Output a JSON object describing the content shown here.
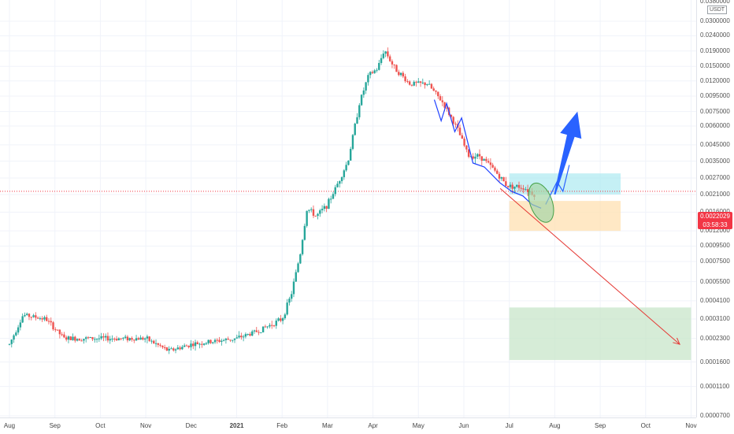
{
  "chart_data": {
    "type": "candlestick",
    "symbol_unit": "USDT",
    "price_scale": "log",
    "price_ticks": [
      "0.0300000",
      "0.0240000",
      "0.0190000",
      "0.0150000",
      "0.0120000",
      "0.0095000",
      "0.0075000",
      "0.0060000",
      "0.0045000",
      "0.0035000",
      "0.0027000",
      "0.0021000",
      "0.0016000",
      "0.0012000",
      "0.0009500",
      "0.0007500",
      "0.0005500",
      "0.0004100",
      "0.0003100",
      "0.0002300",
      "0.0001600",
      "0.0001100",
      "0.0000700"
    ],
    "top_partial_tick": "0.0380000",
    "time_ticks": [
      {
        "label": "Aug",
        "bold": false
      },
      {
        "label": "Sep",
        "bold": false
      },
      {
        "label": "Oct",
        "bold": false
      },
      {
        "label": "Nov",
        "bold": false
      },
      {
        "label": "Dec",
        "bold": false
      },
      {
        "label": "2021",
        "bold": true
      },
      {
        "label": "Feb",
        "bold": false
      },
      {
        "label": "Mar",
        "bold": false
      },
      {
        "label": "Apr",
        "bold": false
      },
      {
        "label": "May",
        "bold": false
      },
      {
        "label": "Jun",
        "bold": false
      },
      {
        "label": "Jul",
        "bold": false
      },
      {
        "label": "Aug",
        "bold": false
      },
      {
        "label": "Sep",
        "bold": false
      },
      {
        "label": "Oct",
        "bold": false
      },
      {
        "label": "Nov",
        "bold": false
      }
    ],
    "current_price": "0.0022029",
    "countdown": "03:58:33",
    "colors": {
      "up": "#26a69a",
      "down": "#ef5350",
      "current": "#f23645"
    },
    "price_path": [
      {
        "m": 0.0,
        "p": 0.00021
      },
      {
        "m": 0.3,
        "p": 0.00033
      },
      {
        "m": 0.8,
        "p": 0.00031
      },
      {
        "m": 1.2,
        "p": 0.00023
      },
      {
        "m": 2.0,
        "p": 0.00023
      },
      {
        "m": 3.0,
        "p": 0.00023
      },
      {
        "m": 3.5,
        "p": 0.00019
      },
      {
        "m": 4.0,
        "p": 0.00021
      },
      {
        "m": 5.0,
        "p": 0.00023
      },
      {
        "m": 5.5,
        "p": 0.00026
      },
      {
        "m": 6.0,
        "p": 0.00031
      },
      {
        "m": 6.2,
        "p": 0.00045
      },
      {
        "m": 6.4,
        "p": 0.00085
      },
      {
        "m": 6.55,
        "p": 0.0017
      },
      {
        "m": 6.75,
        "p": 0.0015
      },
      {
        "m": 7.0,
        "p": 0.0018
      },
      {
        "m": 7.2,
        "p": 0.0024
      },
      {
        "m": 7.45,
        "p": 0.0035
      },
      {
        "m": 7.7,
        "p": 0.0085
      },
      {
        "m": 7.9,
        "p": 0.013
      },
      {
        "m": 8.1,
        "p": 0.0145
      },
      {
        "m": 8.25,
        "p": 0.0195
      },
      {
        "m": 8.45,
        "p": 0.015
      },
      {
        "m": 8.8,
        "p": 0.0115
      },
      {
        "m": 9.2,
        "p": 0.0115
      },
      {
        "m": 9.55,
        "p": 0.0085
      },
      {
        "m": 9.85,
        "p": 0.0058
      },
      {
        "m": 10.1,
        "p": 0.0038
      },
      {
        "m": 10.35,
        "p": 0.0038
      },
      {
        "m": 10.65,
        "p": 0.0031
      },
      {
        "m": 10.95,
        "p": 0.0024
      },
      {
        "m": 11.3,
        "p": 0.00235
      },
      {
        "m": 11.55,
        "p": 0.0021
      }
    ],
    "zones": [
      {
        "name": "resistance-zone",
        "from_m": 11.0,
        "to_m": 13.45,
        "top": 0.0029,
        "bottom": 0.0021,
        "color": "#b2ebf2"
      },
      {
        "name": "support-zone",
        "from_m": 11.0,
        "to_m": 13.45,
        "top": 0.0019,
        "bottom": 0.0012,
        "color": "#ffe0b2"
      },
      {
        "name": "target-zone",
        "from_m": 11.0,
        "to_m": 15.0,
        "top": 0.00037,
        "bottom": 0.000165,
        "color": "#c8e6c9"
      }
    ],
    "bullish_projection": [
      {
        "m": 11.8,
        "p": 0.0018
      },
      {
        "m": 12.05,
        "p": 0.00255
      },
      {
        "m": 12.18,
        "p": 0.0022
      },
      {
        "m": 12.32,
        "p": 0.0033
      }
    ],
    "bullish_arrow": {
      "from": {
        "m": 12.0,
        "p": 0.0021
      },
      "to": {
        "m": 12.5,
        "p": 0.0075
      }
    },
    "bearish_arrow": {
      "from": {
        "m": 10.8,
        "p": 0.0023
      },
      "to": {
        "m": 14.75,
        "p": 0.00021
      }
    },
    "highlight_ellipse": {
      "m": 11.7,
      "p": 0.00185
    }
  }
}
